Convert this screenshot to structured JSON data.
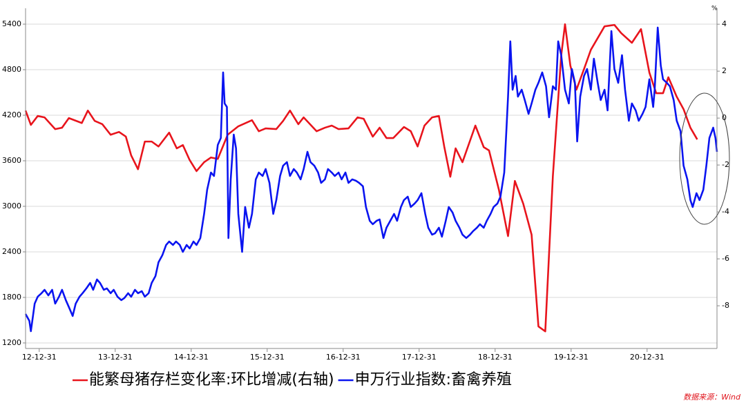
{
  "chart_data": {
    "type": "line",
    "legend_position": "bottom",
    "grid": true,
    "y2_unit": "%",
    "source": "数据来源：Wind",
    "xlim": [
      2012.82,
      2021.92
    ],
    "xticks": [
      {
        "value": 2013.0,
        "label": "12-12-31"
      },
      {
        "value": 2014.0,
        "label": "13-12-31"
      },
      {
        "value": 2015.0,
        "label": "14-12-31"
      },
      {
        "value": 2016.0,
        "label": "15-12-31"
      },
      {
        "value": 2017.0,
        "label": "16-12-31"
      },
      {
        "value": 2018.0,
        "label": "17-12-31"
      },
      {
        "value": 2019.0,
        "label": "18-12-31"
      },
      {
        "value": 2020.0,
        "label": "19-12-31"
      },
      {
        "value": 2021.0,
        "label": "20-12-31"
      }
    ],
    "ylim": [
      1127,
      5609
    ],
    "yticks": [
      1200,
      1800,
      2400,
      3000,
      3600,
      4200,
      4800,
      5400
    ],
    "y2lim": [
      -9.82,
      4.68
    ],
    "y2ticks": [
      -8,
      -6,
      -4,
      -2,
      0,
      2,
      4
    ],
    "series": [
      {
        "name": "能繁母猪存栏变化率:环比增减(右轴)",
        "color": "#e8141c",
        "axis": "y2",
        "x": [
          2012.82,
          2012.89,
          2012.98,
          2013.07,
          2013.21,
          2013.3,
          2013.39,
          2013.56,
          2013.64,
          2013.73,
          2013.83,
          2013.94,
          2014.05,
          2014.14,
          2014.21,
          2014.3,
          2014.39,
          2014.48,
          2014.57,
          2014.71,
          2014.81,
          2014.89,
          2014.98,
          2015.07,
          2015.17,
          2015.26,
          2015.35,
          2015.48,
          2015.62,
          2015.8,
          2015.89,
          2015.98,
          2016.12,
          2016.21,
          2016.3,
          2016.41,
          2016.48,
          2016.65,
          2016.76,
          2016.85,
          2016.94,
          2017.07,
          2017.19,
          2017.27,
          2017.39,
          2017.48,
          2017.57,
          2017.66,
          2017.8,
          2017.89,
          2017.98,
          2018.07,
          2018.17,
          2018.26,
          2018.33,
          2018.41,
          2018.48,
          2018.57,
          2018.74,
          2018.85,
          2018.92,
          2019.05,
          2019.17,
          2019.26,
          2019.37,
          2019.48,
          2019.57,
          2019.66,
          2019.76,
          2019.87,
          2019.92,
          2019.99,
          2020.07,
          2020.17,
          2020.26,
          2020.44,
          2020.57,
          2020.66,
          2020.8,
          2020.92,
          2021.03,
          2021.12,
          2021.21,
          2021.28,
          2021.39,
          2021.48,
          2021.57,
          2021.66
        ],
        "values": [
          0.32,
          -0.29,
          0.09,
          0.03,
          -0.47,
          -0.41,
          0,
          -0.21,
          0.32,
          -0.12,
          -0.26,
          -0.71,
          -0.59,
          -0.79,
          -1.59,
          -2.18,
          -1,
          -1,
          -1.21,
          -0.62,
          -1.29,
          -1.15,
          -1.79,
          -2.26,
          -1.88,
          -1.68,
          -1.74,
          -0.71,
          -0.35,
          -0.09,
          -0.56,
          -0.44,
          -0.47,
          -0.12,
          0.32,
          -0.26,
          0.03,
          -0.56,
          -0.41,
          -0.32,
          -0.47,
          -0.44,
          0.03,
          -0.03,
          -0.79,
          -0.41,
          -0.85,
          -0.85,
          -0.38,
          -0.56,
          -1.21,
          -0.32,
          0.03,
          0.09,
          -1.21,
          -2.5,
          -1.29,
          -1.88,
          -0.32,
          -1.24,
          -1.38,
          -3.06,
          -5.03,
          -2.68,
          -3.65,
          -4.97,
          -8.88,
          -9.09,
          -2.47,
          2.68,
          4,
          2.24,
          1.21,
          2.09,
          2.91,
          3.91,
          3.97,
          3.62,
          3.21,
          3.79,
          1.94,
          1.06,
          1.06,
          1.74,
          0.91,
          0.38,
          -0.41,
          -0.91
        ]
      },
      {
        "name": "申万行业指数:畜禽养殖",
        "color": "#0a14f0",
        "axis": "y",
        "x": [
          2012.82,
          2012.87,
          2012.89,
          2012.94,
          2012.98,
          2013.03,
          2013.07,
          2013.12,
          2013.17,
          2013.21,
          2013.26,
          2013.3,
          2013.35,
          2013.39,
          2013.44,
          2013.48,
          2013.53,
          2013.57,
          2013.62,
          2013.67,
          2013.71,
          2013.76,
          2013.8,
          2013.85,
          2013.89,
          2013.94,
          2013.98,
          2014.03,
          2014.08,
          2014.12,
          2014.17,
          2014.21,
          2014.26,
          2014.3,
          2014.35,
          2014.39,
          2014.44,
          2014.48,
          2014.53,
          2014.57,
          2014.62,
          2014.67,
          2014.71,
          2014.76,
          2014.8,
          2014.85,
          2014.89,
          2014.94,
          2014.98,
          2015.03,
          2015.07,
          2015.12,
          2015.17,
          2015.21,
          2015.26,
          2015.3,
          2015.35,
          2015.39,
          2015.42,
          2015.44,
          2015.47,
          2015.49,
          2015.52,
          2015.56,
          2015.59,
          2015.62,
          2015.67,
          2015.71,
          2015.76,
          2015.8,
          2015.85,
          2015.89,
          2015.94,
          2015.98,
          2016.03,
          2016.08,
          2016.12,
          2016.17,
          2016.21,
          2016.26,
          2016.3,
          2016.35,
          2016.39,
          2016.44,
          2016.48,
          2016.53,
          2016.57,
          2016.62,
          2016.67,
          2016.71,
          2016.76,
          2016.8,
          2016.85,
          2016.89,
          2016.94,
          2016.98,
          2017.03,
          2017.07,
          2017.12,
          2017.17,
          2017.21,
          2017.26,
          2017.3,
          2017.35,
          2017.39,
          2017.44,
          2017.48,
          2017.53,
          2017.57,
          2017.62,
          2017.67,
          2017.71,
          2017.76,
          2017.8,
          2017.85,
          2017.89,
          2017.94,
          2017.98,
          2018.03,
          2018.08,
          2018.12,
          2018.17,
          2018.21,
          2018.26,
          2018.3,
          2018.35,
          2018.39,
          2018.44,
          2018.48,
          2018.53,
          2018.57,
          2018.62,
          2018.67,
          2018.71,
          2018.76,
          2018.8,
          2018.85,
          2018.89,
          2018.94,
          2018.98,
          2019.03,
          2019.07,
          2019.12,
          2019.15,
          2019.17,
          2019.2,
          2019.23,
          2019.27,
          2019.3,
          2019.35,
          2019.39,
          2019.44,
          2019.48,
          2019.53,
          2019.57,
          2019.62,
          2019.67,
          2019.71,
          2019.76,
          2019.8,
          2019.83,
          2019.87,
          2019.92,
          2019.97,
          2020.01,
          2020.05,
          2020.08,
          2020.12,
          2020.17,
          2020.21,
          2020.26,
          2020.3,
          2020.35,
          2020.39,
          2020.44,
          2020.48,
          2020.53,
          2020.57,
          2020.62,
          2020.67,
          2020.71,
          2020.76,
          2020.8,
          2020.85,
          2020.89,
          2020.94,
          2020.98,
          2021.03,
          2021.08,
          2021.1,
          2021.14,
          2021.18,
          2021.21,
          2021.26,
          2021.3,
          2021.35,
          2021.39,
          2021.44,
          2021.48,
          2021.53,
          2021.57,
          2021.6,
          2021.65,
          2021.69,
          2021.74,
          2021.78,
          2021.82,
          2021.87,
          2021.9,
          2021.92
        ],
        "values": [
          1582,
          1491,
          1355,
          1718,
          1809,
          1855,
          1900,
          1827,
          1900,
          1718,
          1809,
          1900,
          1764,
          1673,
          1555,
          1718,
          1809,
          1855,
          1918,
          1991,
          1900,
          2036,
          1991,
          1900,
          1918,
          1855,
          1900,
          1809,
          1764,
          1791,
          1855,
          1809,
          1900,
          1855,
          1882,
          1809,
          1855,
          1991,
          2082,
          2264,
          2355,
          2491,
          2536,
          2491,
          2536,
          2491,
          2400,
          2491,
          2445,
          2536,
          2491,
          2582,
          2900,
          3218,
          3445,
          3400,
          3809,
          3900,
          4764,
          4355,
          4309,
          2582,
          3355,
          3945,
          3764,
          2900,
          2400,
          2991,
          2718,
          2900,
          3355,
          3445,
          3400,
          3491,
          3309,
          2900,
          3082,
          3400,
          3536,
          3582,
          3400,
          3491,
          3445,
          3355,
          3491,
          3718,
          3582,
          3536,
          3445,
          3309,
          3355,
          3491,
          3445,
          3400,
          3445,
          3355,
          3445,
          3309,
          3355,
          3336,
          3309,
          3264,
          2991,
          2809,
          2764,
          2809,
          2827,
          2582,
          2718,
          2809,
          2900,
          2809,
          2991,
          3082,
          3127,
          2991,
          3036,
          3082,
          3173,
          2900,
          2718,
          2627,
          2645,
          2718,
          2600,
          2809,
          2991,
          2918,
          2809,
          2718,
          2627,
          2582,
          2627,
          2673,
          2718,
          2764,
          2718,
          2809,
          2900,
          2991,
          3036,
          3127,
          3445,
          4036,
          4445,
          5173,
          4536,
          4718,
          4445,
          4536,
          4400,
          4218,
          4355,
          4536,
          4627,
          4764,
          4582,
          4173,
          4582,
          4536,
          5173,
          4991,
          4536,
          4355,
          4809,
          4627,
          3855,
          4445,
          4718,
          4809,
          4536,
          4945,
          4627,
          4400,
          4536,
          4264,
          5309,
          4809,
          4627,
          4991,
          4536,
          4127,
          4355,
          4264,
          4127,
          4218,
          4309,
          4673,
          4309,
          4536,
          5355,
          4855,
          4673,
          4627,
          4582,
          4400,
          4127,
          3991,
          3536,
          3355,
          3082,
          2991,
          3173,
          3082,
          3218,
          3536,
          3900,
          4036,
          3900,
          3718
        ]
      }
    ]
  }
}
